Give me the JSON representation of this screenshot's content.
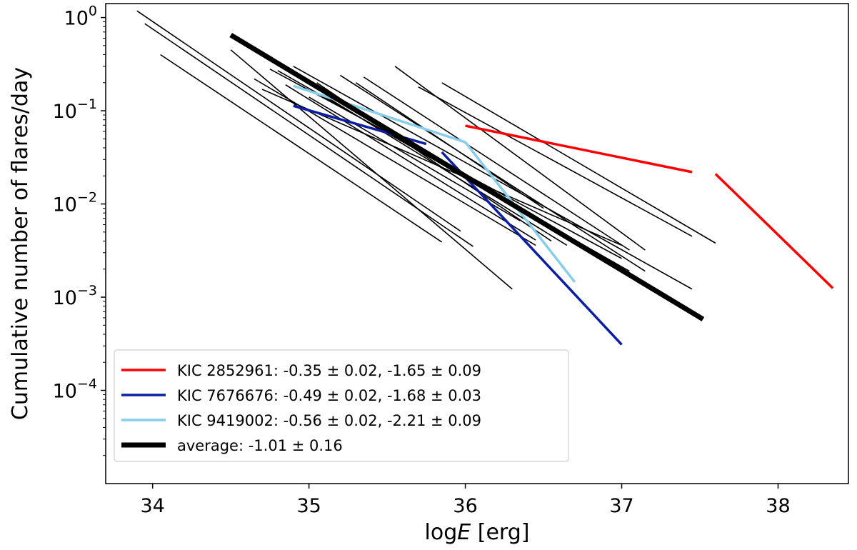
{
  "chart_data": {
    "type": "line",
    "title": "",
    "xlabel_prefix": "log",
    "xlabel_var": "E",
    "xlabel_suffix": " [erg]",
    "ylabel": "Cumulative number of flares/day",
    "xlim": [
      33.7,
      38.45
    ],
    "ylim_log10": [
      -5.0,
      0.15
    ],
    "xscale": "linear",
    "yscale": "log",
    "grid": false,
    "x_ticks": [
      {
        "value": 34,
        "label": "34"
      },
      {
        "value": 35,
        "label": "35"
      },
      {
        "value": 36,
        "label": "36"
      },
      {
        "value": 37,
        "label": "37"
      },
      {
        "value": 38,
        "label": "38"
      }
    ],
    "y_ticks": [
      {
        "exp": 0,
        "base": "10",
        "sup": "0"
      },
      {
        "exp": -1,
        "base": "10",
        "sup": "−1"
      },
      {
        "exp": -2,
        "base": "10",
        "sup": "−2"
      },
      {
        "exp": -3,
        "base": "10",
        "sup": "−3"
      },
      {
        "exp": -4,
        "base": "10",
        "sup": "−4"
      }
    ],
    "background_series": {
      "color": "#000000",
      "lines": [
        [
          [
            33.9,
            1.18
          ],
          [
            35.97,
            0.0051
          ]
        ],
        [
          [
            33.95,
            0.86
          ],
          [
            36.05,
            0.0035
          ]
        ],
        [
          [
            34.05,
            0.4
          ],
          [
            35.85,
            0.0039
          ]
        ],
        [
          [
            34.5,
            0.45
          ],
          [
            36.3,
            0.00122
          ]
        ],
        [
          [
            34.65,
            0.22
          ],
          [
            36.45,
            0.0036
          ]
        ],
        [
          [
            34.7,
            0.17
          ],
          [
            37.0,
            0.0036
          ]
        ],
        [
          [
            34.75,
            0.28
          ],
          [
            37.0,
            0.0026
          ]
        ],
        [
          [
            34.8,
            0.27
          ],
          [
            37.05,
            0.0019
          ]
        ],
        [
          [
            34.85,
            0.19
          ],
          [
            36.45,
            0.0041
          ]
        ],
        [
          [
            34.9,
            0.3
          ],
          [
            37.45,
            0.00122
          ]
        ],
        [
          [
            35.0,
            0.14
          ],
          [
            36.35,
            0.0066
          ]
        ],
        [
          [
            35.05,
            0.2
          ],
          [
            36.55,
            0.004
          ]
        ],
        [
          [
            35.1,
            0.145
          ],
          [
            36.65,
            0.0036
          ]
        ],
        [
          [
            35.2,
            0.24
          ],
          [
            37.15,
            0.0019
          ]
        ],
        [
          [
            35.3,
            0.2
          ],
          [
            36.5,
            0.009
          ]
        ],
        [
          [
            35.35,
            0.23
          ],
          [
            37.05,
            0.0032
          ]
        ],
        [
          [
            35.55,
            0.3
          ],
          [
            37.15,
            0.0032
          ]
        ],
        [
          [
            35.7,
            0.18
          ],
          [
            37.45,
            0.0045
          ]
        ],
        [
          [
            35.85,
            0.2
          ],
          [
            37.6,
            0.0038
          ]
        ]
      ]
    },
    "series": [
      {
        "name": "KIC 2852961: -0.35 ± 0.02, -1.65 ± 0.09",
        "color": "#ff0000",
        "width": 3.5,
        "segments": [
          [
            [
              36.0,
              0.069
            ],
            [
              37.45,
              0.022
            ]
          ],
          [
            [
              37.6,
              0.021
            ],
            [
              38.35,
              0.00125
            ]
          ]
        ]
      },
      {
        "name": "KIC 7676676: -0.49 ± 0.02, -1.68 ± 0.03",
        "color": "#0a1fa6",
        "width": 3.5,
        "segments": [
          [
            [
              34.9,
              0.113
            ],
            [
              35.75,
              0.044
            ]
          ],
          [
            [
              35.85,
              0.036
            ],
            [
              37.0,
              0.00031
            ]
          ]
        ]
      },
      {
        "name": "KIC 9419002: -0.56 ± 0.02, -2.21 ± 0.09",
        "color": "#87ceeb",
        "width": 3.5,
        "segments": [
          [
            [
              34.9,
              0.185
            ],
            [
              36.0,
              0.046
            ]
          ],
          [
            [
              36.0,
              0.046
            ],
            [
              36.7,
              0.00145
            ]
          ]
        ]
      },
      {
        "name": "average: -1.01 ± 0.16",
        "color": "#000000",
        "width": 7,
        "segments": [
          [
            [
              34.5,
              0.65
            ],
            [
              37.52,
              0.00058
            ]
          ]
        ]
      }
    ],
    "legend": {
      "placement": "lower-left",
      "entries": [
        {
          "label": "KIC 2852961: -0.35 ± 0.02, -1.65 ± 0.09",
          "color": "#ff0000",
          "width": 3.5
        },
        {
          "label": "KIC 7676676: -0.49 ± 0.02, -1.68 ± 0.03",
          "color": "#0a1fa6",
          "width": 3.5
        },
        {
          "label": "KIC 9419002: -0.56 ± 0.02, -2.21 ± 0.09",
          "color": "#87ceeb",
          "width": 3.5
        },
        {
          "label": "average: -1.01 ± 0.16",
          "color": "#000000",
          "width": 7
        }
      ]
    }
  }
}
